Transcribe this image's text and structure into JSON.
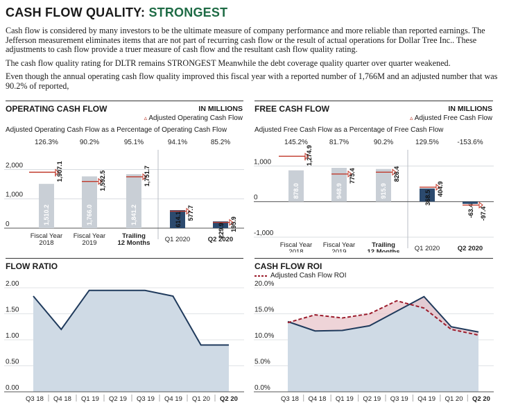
{
  "header": {
    "title_prefix": "CASH FLOW QUALITY: ",
    "title_rating": "STRONGEST"
  },
  "intro": {
    "p1": "Cash flow is considered by many investors to be the ultimate measure of company performance and more reliable than reported earnings. The Jefferson measurement eliminates items that are not part of recurring cash flow or the result of actual operations for Dollar Tree Inc.. These adjustments to cash flow provide a truer measure of cash flow and the resultant cash flow quality rating.",
    "p2": "The cash flow quality rating for DLTR remains STRONGEST Meanwhile the debt coverage quality quarter over quarter weakened.",
    "p3": "Even though the annual operating cash flow quality improved this fiscal year with a reported number of 1,766M and an adjusted number that was 90.2% of reported,"
  },
  "colors": {
    "bar_light": "#c9cfd6",
    "bar_dark": "#2c4a6e",
    "area": "#cfdae5",
    "line": "#1f3a5c",
    "dashed": "#9b1c2c",
    "marker": "#c0392b",
    "title_green": "#1e6b45"
  },
  "chart_data": [
    {
      "type": "bar",
      "title": "OPERATING CASH FLOW",
      "units": "IN MILLIONS",
      "legend_marker": "▵",
      "legend": "Adjusted Operating Cash Flow",
      "subtitle": "Adjusted Operating Cash Flow as a Percentage of Operating Cash Flow",
      "categories": [
        [
          "Fiscal Year",
          "2018"
        ],
        [
          "Fiscal Year",
          "2019"
        ],
        [
          "Trailing",
          "12 Months"
        ],
        [
          "Q1 2020"
        ],
        [
          "Q2 2020"
        ]
      ],
      "percentages": [
        "126.3%",
        "90.2%",
        "95.1%",
        "94.1%",
        "85.2%"
      ],
      "values": [
        1510.2,
        1766.0,
        1841.2,
        614.1,
        229.9
      ],
      "adjusted": [
        1907.1,
        1592.5,
        1751.7,
        577.7,
        195.9
      ],
      "value_labels": [
        "1,510.2",
        "1,766.0",
        "1,841.2",
        "614.1",
        "229.9"
      ],
      "adjusted_labels": [
        "1,907.1",
        "1,592.5",
        "1,751.7",
        "577.7",
        "195.9"
      ],
      "ylim": [
        0,
        2200
      ],
      "yticks": [
        0,
        1000,
        2000
      ],
      "ytick_labels": [
        "0",
        "1,000",
        "2,000"
      ]
    },
    {
      "type": "bar",
      "title": "FREE CASH FLOW",
      "units": "IN MILLIONS",
      "legend_marker": "▵",
      "legend": "Adjusted Free Cash Flow",
      "subtitle": "Adjusted Free Cash Flow as a Percentage of Free Cash Flow",
      "categories": [
        [
          "Fiscal Year",
          "2018"
        ],
        [
          "Fiscal Year",
          "2019"
        ],
        [
          "Trailing",
          "12 Months"
        ],
        [
          "Q1 2020"
        ],
        [
          "Q2 2020"
        ]
      ],
      "percentages": [
        "145.2%",
        "81.7%",
        "90.2%",
        "129.5%",
        "-153.6%"
      ],
      "values": [
        878.0,
        948.9,
        915.9,
        368.5,
        -63.4
      ],
      "adjusted": [
        1274.9,
        775.4,
        826.4,
        404.9,
        -97.4
      ],
      "value_labels": [
        "878.0",
        "948.9",
        "915.9",
        "368.5",
        "-63.4"
      ],
      "adjusted_labels": [
        "1,274.9",
        "775.4",
        "826.4",
        "404.9",
        "-97.4"
      ],
      "ylim": [
        -1000,
        1300
      ],
      "yticks": [
        -1000,
        0,
        1000
      ],
      "ytick_labels": [
        "-1,000",
        "0",
        "1,000"
      ]
    },
    {
      "type": "area",
      "title": "FLOW RATIO",
      "x": [
        "Q3 18",
        "Q4 18",
        "Q1 19",
        "Q2 19",
        "Q3 19",
        "Q4 19",
        "Q1 20",
        "Q2 20"
      ],
      "values": [
        1.84,
        1.2,
        1.95,
        1.95,
        1.95,
        1.84,
        0.9,
        0.9
      ],
      "ylim": [
        0,
        2.0
      ],
      "yticks": [
        0,
        0.5,
        1.0,
        1.5,
        2.0
      ],
      "ytick_labels": [
        "0.00",
        "0.50",
        "1.00",
        "1.50",
        "2.00"
      ]
    },
    {
      "type": "area",
      "title": "CASH FLOW ROI",
      "legend": "Adjusted Cash Flow ROI",
      "x": [
        "Q3 18",
        "Q4 18",
        "Q1 19",
        "Q2 19",
        "Q3 19",
        "Q4 19",
        "Q1 20",
        "Q2 20"
      ],
      "values": [
        13.5,
        11.7,
        11.8,
        12.7,
        15.5,
        18.3,
        12.5,
        11.5
      ],
      "adjusted": [
        13.3,
        14.8,
        14.2,
        15.0,
        17.5,
        16.1,
        12.0,
        10.9
      ],
      "ylim": [
        0,
        20
      ],
      "yticks": [
        0,
        5,
        10,
        15,
        20
      ],
      "ytick_labels": [
        "0.0%",
        "5.0%",
        "10.0%",
        "15.0%",
        "20.0%"
      ]
    }
  ]
}
